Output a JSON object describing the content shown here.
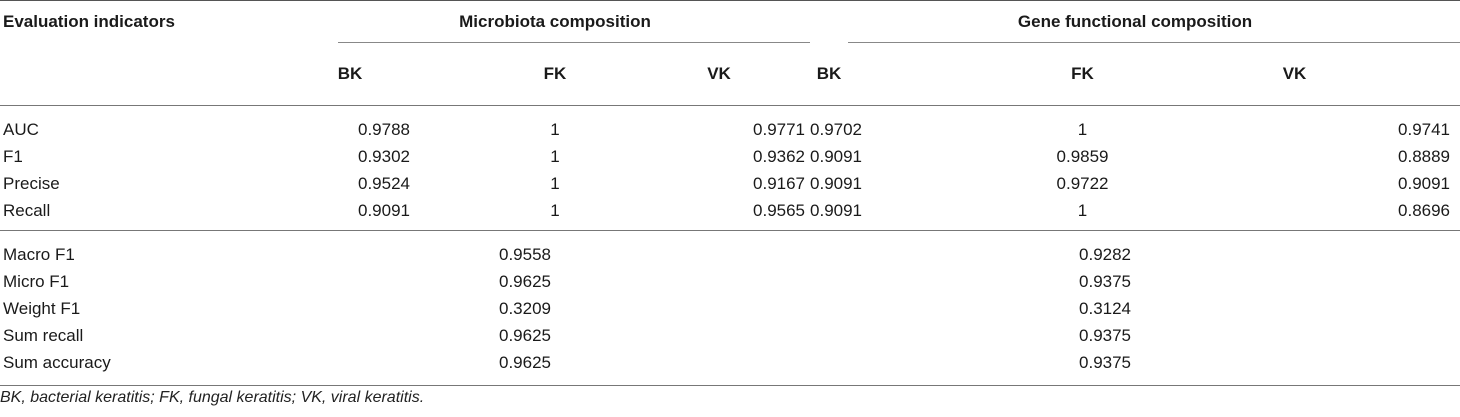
{
  "table": {
    "header": {
      "evaluation_indicators": "Evaluation indicators",
      "group_microbiota": "Microbiota composition",
      "group_gene": "Gene functional composition",
      "sub_cols": [
        "BK",
        "FK",
        "VK",
        "BK",
        "FK",
        "VK"
      ]
    },
    "per_class_rows": [
      {
        "label": "AUC",
        "values": [
          "0.9788",
          "1",
          "0.9771",
          "0.9702",
          "1",
          "0.9741"
        ]
      },
      {
        "label": "F1",
        "values": [
          "0.9302",
          "1",
          "0.9362",
          "0.9091",
          "0.9859",
          "0.8889"
        ]
      },
      {
        "label": "Precise",
        "values": [
          "0.9524",
          "1",
          "0.9167",
          "0.9091",
          "0.9722",
          "0.9091"
        ]
      },
      {
        "label": "Recall",
        "values": [
          "0.9091",
          "1",
          "0.9565",
          "0.9091",
          "1",
          "0.8696"
        ]
      }
    ],
    "summary_rows": [
      {
        "label": "Macro F1",
        "microbiota": "0.9558",
        "gene": "0.9282"
      },
      {
        "label": "Micro F1",
        "microbiota": "0.9625",
        "gene": "0.9375"
      },
      {
        "label": "Weight F1",
        "microbiota": "0.3209",
        "gene": "0.3124"
      },
      {
        "label": "Sum recall",
        "microbiota": "0.9625",
        "gene": "0.9375"
      },
      {
        "label": "Sum accuracy",
        "microbiota": "0.9625",
        "gene": "0.9375"
      }
    ]
  },
  "footnote": "BK, bacterial keratitis; FK, fungal keratitis; VK, viral keratitis."
}
